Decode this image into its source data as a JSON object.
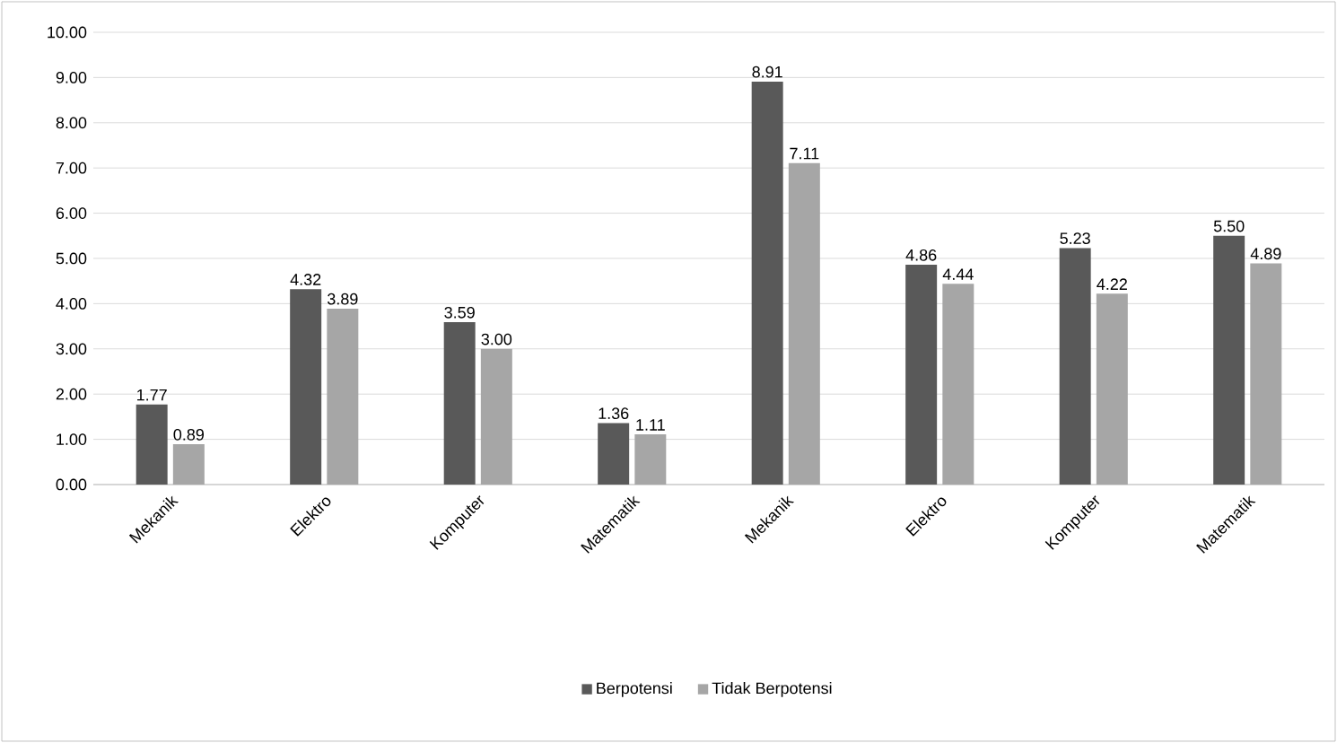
{
  "chart_data": {
    "type": "bar",
    "categories": [
      "Mekanik",
      "Elektro",
      "Komputer",
      "Matematik",
      "Mekanik",
      "Elektro",
      "Komputer",
      "Matematik"
    ],
    "series": [
      {
        "name": "Berpotensi",
        "color": "#595959",
        "values": [
          1.77,
          4.32,
          3.59,
          1.36,
          8.91,
          4.86,
          5.23,
          5.5
        ],
        "value_labels": [
          "1.77",
          "4.32",
          "3.59",
          "1.36",
          "8.91",
          "4.86",
          "5.23",
          "5.50"
        ]
      },
      {
        "name": "Tidak Berpotensi",
        "color": "#a6a6a6",
        "values": [
          0.89,
          3.89,
          3.0,
          1.11,
          7.11,
          4.44,
          4.22,
          4.89
        ],
        "value_labels": [
          "0.89",
          "3.89",
          "3.00",
          "1.11",
          "7.11",
          "4.44",
          "4.22",
          "4.89"
        ]
      }
    ],
    "ylim": [
      0,
      10
    ],
    "yticks": [
      {
        "value": 0,
        "label": "0.00"
      },
      {
        "value": 1,
        "label": "1.00"
      },
      {
        "value": 2,
        "label": "2.00"
      },
      {
        "value": 3,
        "label": "3.00"
      },
      {
        "value": 4,
        "label": "4.00"
      },
      {
        "value": 5,
        "label": "5.00"
      },
      {
        "value": 6,
        "label": "6.00"
      },
      {
        "value": 7,
        "label": "7.00"
      },
      {
        "value": 8,
        "label": "8.00"
      },
      {
        "value": 9,
        "label": "9.00"
      },
      {
        "value": 10,
        "label": "10.00"
      }
    ],
    "grid": "y",
    "legend": "bottom"
  }
}
